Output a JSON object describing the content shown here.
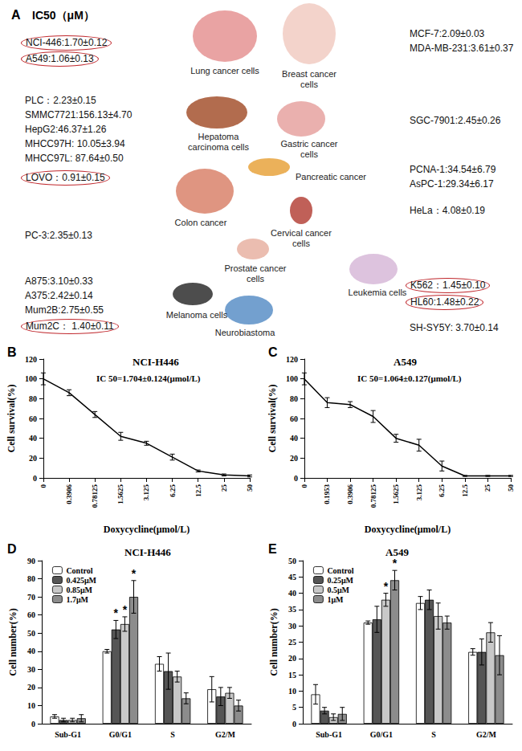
{
  "panel_a": {
    "label": "A",
    "title": "IC50（μM）",
    "entries": [
      {
        "text": "NCI-446:1.70±0.12",
        "highlighted": true
      },
      {
        "text": "A549:1.06±0.13",
        "highlighted": true
      },
      {
        "text": "MCF-7:2.09±0.03",
        "highlighted": false
      },
      {
        "text": "MDA-MB-231:3.61±0.37",
        "highlighted": false
      },
      {
        "text": "PLC：2.23±0.15",
        "highlighted": false
      },
      {
        "text": "SMMC7721:156.13±4.70",
        "highlighted": false
      },
      {
        "text": "HepG2:46.37±1.26",
        "highlighted": false
      },
      {
        "text": "MHCC97H: 10.05±3.94",
        "highlighted": false
      },
      {
        "text": "MHCC97L: 87.64±0.50",
        "highlighted": false
      },
      {
        "text": "SGC-7901:2.45±0.26",
        "highlighted": false
      },
      {
        "text": "LOVO：0.91±0.15",
        "highlighted": true
      },
      {
        "text": "PCNA-1:34.54±6.79",
        "highlighted": false
      },
      {
        "text": "AsPC-1:29.34±6.17",
        "highlighted": false
      },
      {
        "text": "HeLa：4.08±0.19",
        "highlighted": false
      },
      {
        "text": "PC-3:2.35±0.13",
        "highlighted": false
      },
      {
        "text": "A875:3.10±0.33",
        "highlighted": false
      },
      {
        "text": "A375:2.42±0.14",
        "highlighted": false
      },
      {
        "text": "Mum2B:2.75±0.55",
        "highlighted": false
      },
      {
        "text": "Mum2C： 1.40±0.11",
        "highlighted": true
      },
      {
        "text": "K562：1.45±0.10",
        "highlighted": true
      },
      {
        "text": "HL60:1.48±0.22",
        "highlighted": true
      },
      {
        "text": "SH-SY5Y: 3.70±0.14",
        "highlighted": false
      }
    ],
    "organs": [
      "Lung cancer cells",
      "Breast cancer cells",
      "Hepatoma carcinoma cells",
      "Gastric cancer cells",
      "Colon cancer",
      "Pancreatic cancer",
      "Cervical cancer cells",
      "Prostate cancer cells",
      "Melanoma cells",
      "Neurobiastoma",
      "Leukemia cells"
    ]
  },
  "chart_data": [
    {
      "panel": "B",
      "type": "line",
      "title": "NCI-H446",
      "annotation": "IC 50=1.704±0.124(μmol/L)",
      "x_label": "Doxycycline(μmol/L)",
      "y_label": "Cell survival(%)",
      "categories": [
        "0",
        "0.3906",
        "0.78125",
        "1.5625",
        "3.125",
        "6.25",
        "12.5",
        "25",
        "50"
      ],
      "values": [
        100,
        86,
        64,
        42,
        35,
        21,
        7,
        3,
        2
      ],
      "errors": [
        6,
        3,
        3,
        4,
        2,
        3,
        1,
        1,
        1
      ],
      "color": "#000000",
      "ylim": [
        0,
        120
      ],
      "yticks": [
        0,
        20,
        40,
        60,
        80,
        100,
        120
      ],
      "grid": false
    },
    {
      "panel": "C",
      "type": "line",
      "title": "A549",
      "annotation": "IC 50=1.064±0.127(μmol/L)",
      "x_label": "Doxycycline(μmol/L)",
      "y_label": "Cell survival(%)",
      "categories": [
        "0",
        "0.1953",
        "0.3906",
        "0.78125",
        "1.5625",
        "3.125",
        "6.25",
        "12.5",
        "25",
        "50"
      ],
      "values": [
        100,
        76,
        74,
        62,
        40,
        33,
        12,
        2,
        2,
        2
      ],
      "errors": [
        6,
        5,
        3,
        6,
        4,
        6,
        5,
        0.5,
        0.5,
        0.5
      ],
      "color": "#000000",
      "ylim": [
        0,
        120
      ],
      "yticks": [
        0,
        20,
        40,
        60,
        80,
        100,
        120
      ],
      "grid": false
    },
    {
      "panel": "D",
      "type": "bar",
      "title": "NCI-H446",
      "y_label": "Cell number(%)",
      "categories": [
        "Sub-G1",
        "G0/G1",
        "S",
        "G2/M"
      ],
      "series": [
        {
          "name": "Control",
          "color": "#ffffff",
          "values": [
            4,
            40,
            33,
            19
          ],
          "errors": [
            1,
            1,
            4,
            7
          ],
          "marks": [
            null,
            null,
            null,
            null
          ]
        },
        {
          "name": "0.425μM",
          "color": "#555555",
          "values": [
            2,
            52,
            29,
            15
          ],
          "errors": [
            1,
            5,
            10,
            5
          ],
          "marks": [
            null,
            "*",
            null,
            null
          ]
        },
        {
          "name": "0.85μM",
          "color": "#c8c8c8",
          "values": [
            2,
            55,
            26,
            17
          ],
          "errors": [
            1,
            4,
            3,
            3
          ],
          "marks": [
            null,
            "*",
            null,
            null
          ]
        },
        {
          "name": "1.7μM",
          "color": "#8c8c8c",
          "values": [
            3,
            70,
            14,
            10
          ],
          "errors": [
            2,
            9,
            3,
            3
          ],
          "marks": [
            null,
            "*",
            null,
            null
          ]
        }
      ],
      "ylim": [
        0,
        90
      ],
      "yticks": [
        0,
        10,
        20,
        30,
        40,
        50,
        60,
        70,
        80,
        90
      ],
      "grid": false,
      "legend": "top-left"
    },
    {
      "panel": "E",
      "type": "bar",
      "title": "A549",
      "y_label": "Cell number(%)",
      "categories": [
        "Sub-G1",
        "G0/G1",
        "S",
        "G2/M"
      ],
      "series": [
        {
          "name": "Control",
          "color": "#ffffff",
          "values": [
            9,
            31,
            37,
            22
          ],
          "errors": [
            3,
            0.5,
            2,
            1
          ],
          "marks": [
            null,
            null,
            null,
            null
          ]
        },
        {
          "name": "0.25μM",
          "color": "#555555",
          "values": [
            4,
            32,
            38,
            22
          ],
          "errors": [
            1,
            4,
            3,
            4
          ],
          "marks": [
            null,
            null,
            null,
            null
          ]
        },
        {
          "name": "0.5μM",
          "color": "#c8c8c8",
          "values": [
            2,
            38,
            33,
            28
          ],
          "errors": [
            1,
            2,
            4,
            3
          ],
          "marks": [
            null,
            "*",
            null,
            null
          ]
        },
        {
          "name": "1μM",
          "color": "#8c8c8c",
          "values": [
            3,
            44,
            31,
            21
          ],
          "errors": [
            2,
            3,
            2,
            6
          ],
          "marks": [
            null,
            "*",
            null,
            null
          ]
        }
      ],
      "ylim": [
        0,
        50
      ],
      "yticks": [
        0,
        5,
        10,
        15,
        20,
        25,
        30,
        35,
        40,
        45,
        50
      ],
      "grid": false,
      "legend": "top-left"
    }
  ]
}
